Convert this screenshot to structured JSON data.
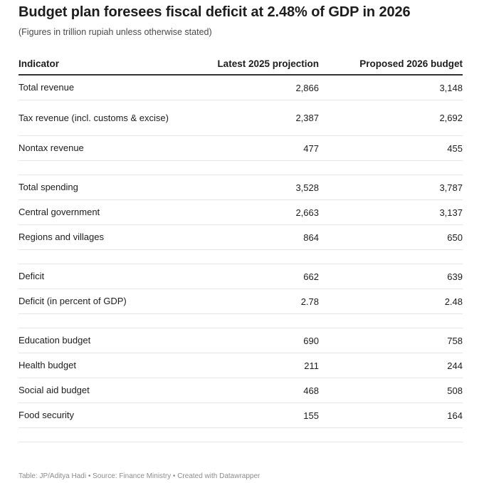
{
  "title": "Budget plan foresees fiscal deficit at 2.48% of GDP in 2026",
  "subtitle": "(Figures in trillion rupiah unless otherwise stated)",
  "footer": "Table: JP/Aditya Hadi • Source: Finance Ministry • Created with Datawrapper",
  "chart_data": {
    "type": "table",
    "title": "Budget plan foresees fiscal deficit at 2.48% of GDP in 2026",
    "columns": [
      "Indicator",
      "Latest 2025 projection",
      "Proposed 2026 budget"
    ],
    "rows": [
      {
        "indicator": "Total revenue",
        "proj_2025": "2,866",
        "budget_2026": "3,148"
      },
      {
        "indicator": "Tax revenue (incl. customs & excise)",
        "proj_2025": "2,387",
        "budget_2026": "2,692"
      },
      {
        "indicator": "Nontax revenue",
        "proj_2025": "477",
        "budget_2026": "455"
      },
      {
        "indicator": "Total spending",
        "proj_2025": "3,528",
        "budget_2026": "3,787"
      },
      {
        "indicator": "Central government",
        "proj_2025": "2,663",
        "budget_2026": "3,137"
      },
      {
        "indicator": "Regions and villages",
        "proj_2025": "864",
        "budget_2026": "650"
      },
      {
        "indicator": "Deficit",
        "proj_2025": "662",
        "budget_2026": "639"
      },
      {
        "indicator": "Deficit (in percent of GDP)",
        "proj_2025": "2.78",
        "budget_2026": "2.48"
      },
      {
        "indicator": "Education budget",
        "proj_2025": "690",
        "budget_2026": "758"
      },
      {
        "indicator": "Health budget",
        "proj_2025": "211",
        "budget_2026": "244"
      },
      {
        "indicator": "Social aid budget",
        "proj_2025": "468",
        "budget_2026": "508"
      },
      {
        "indicator": "Food security",
        "proj_2025": "155",
        "budget_2026": "164"
      }
    ]
  }
}
